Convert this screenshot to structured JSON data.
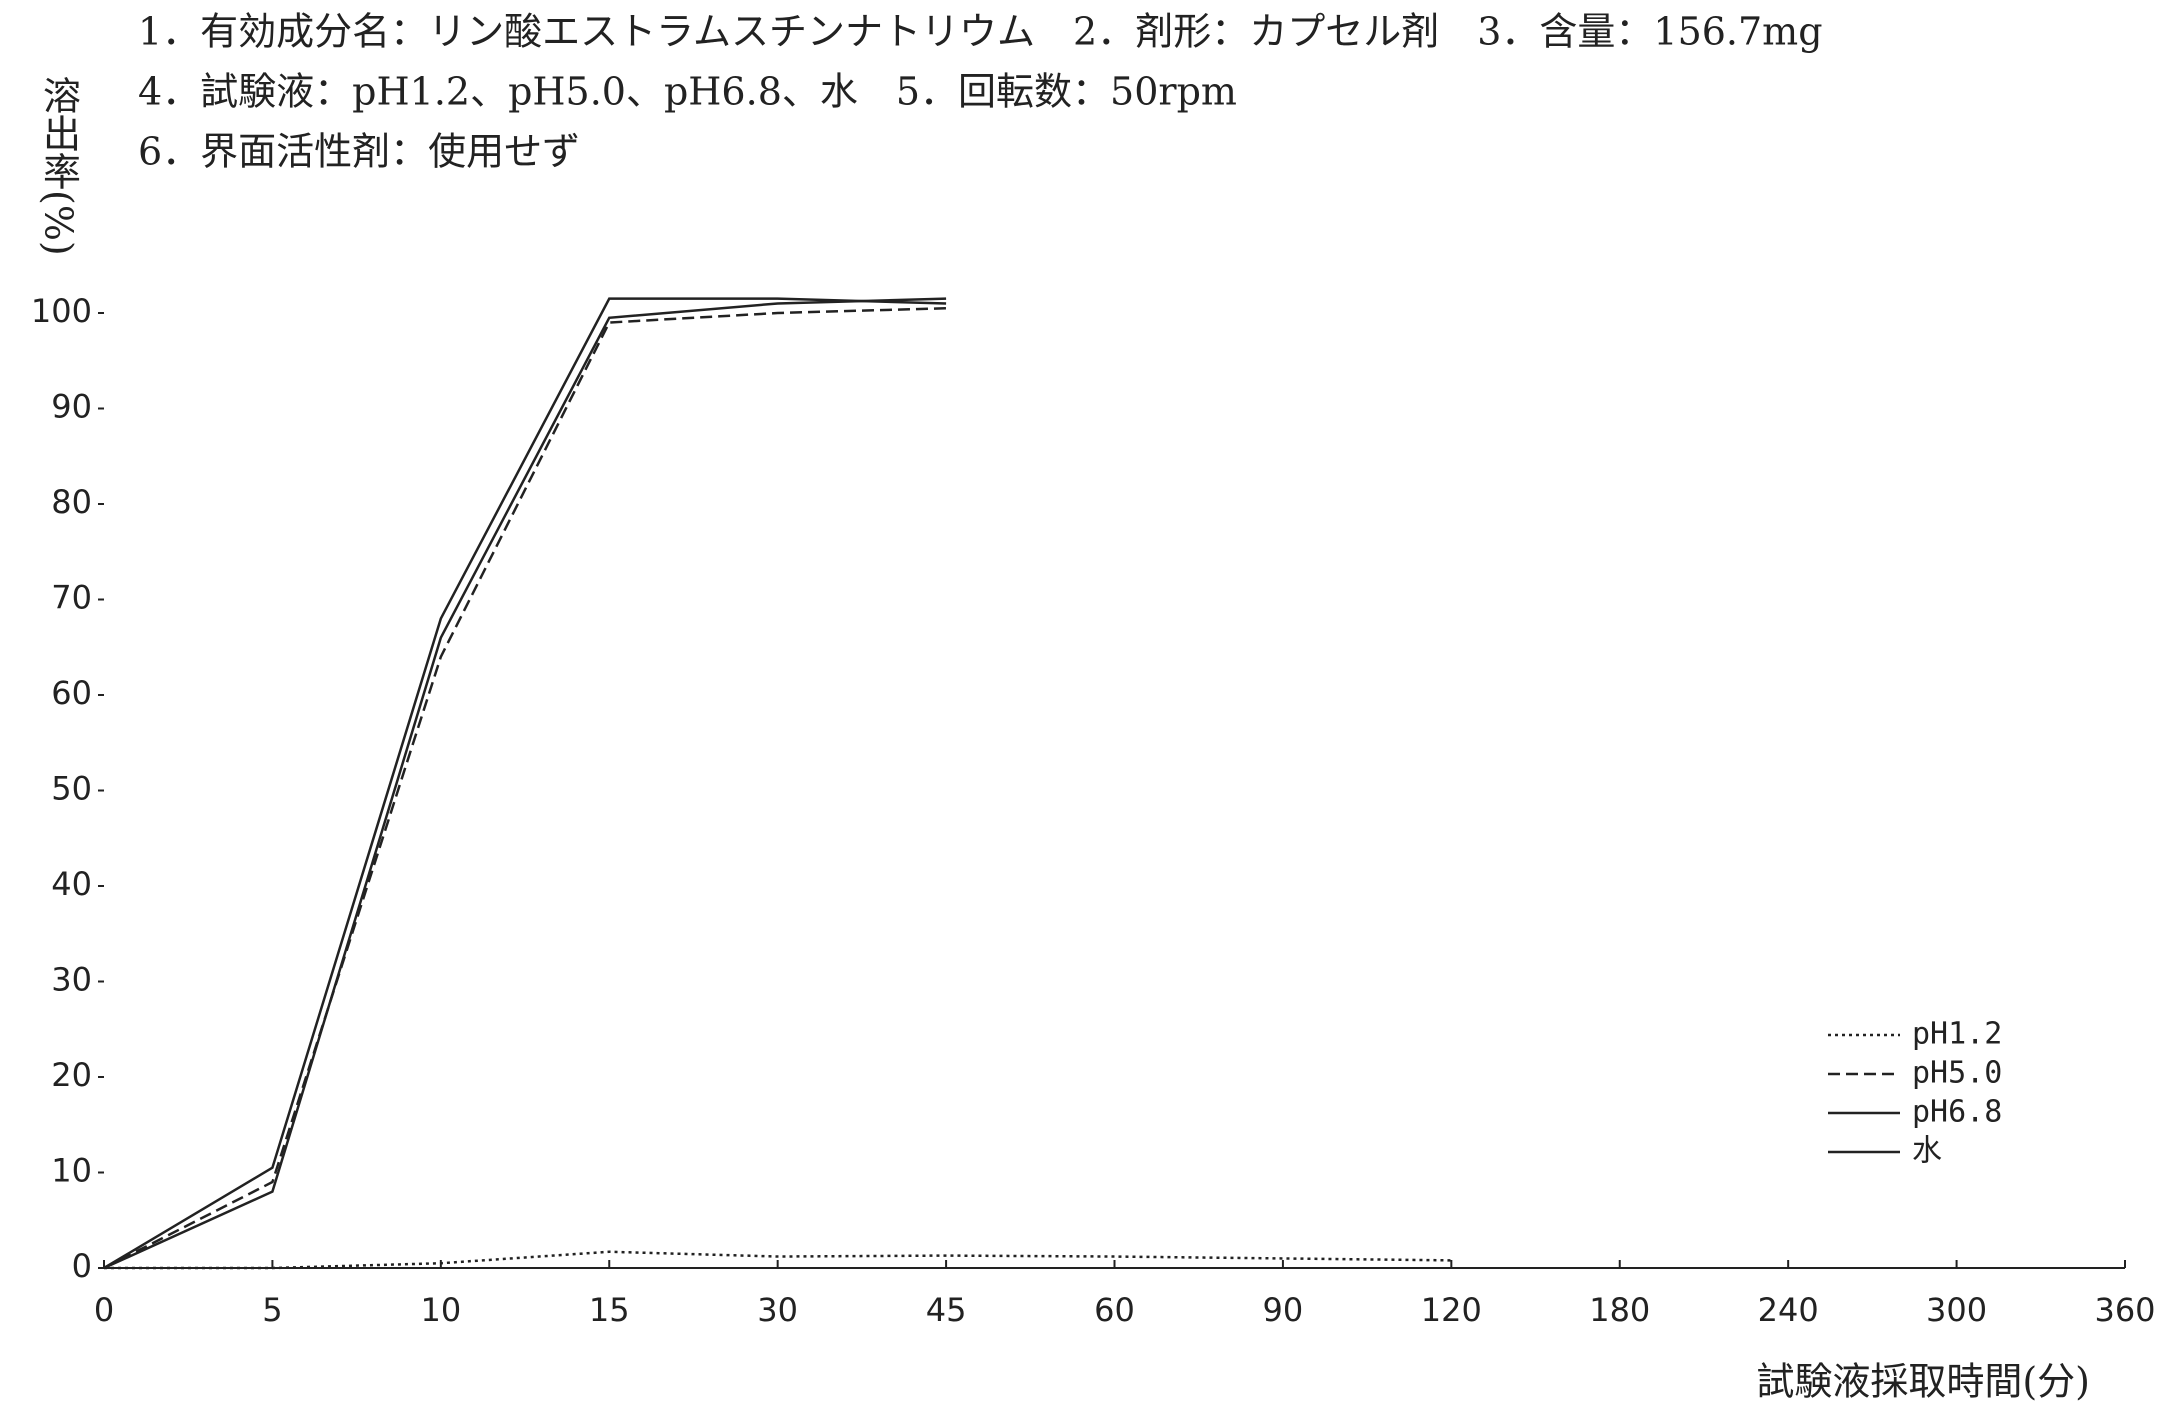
{
  "chart_data": {
    "type": "line",
    "notes": [
      "1．有効成分名：リン酸エストラムスチンナトリウム　2．剤形：カプセル剤　3．含量：156.7mg",
      "4．試験液：pH1.2、pH5.0、pH6.8、水　5．回転数：50rpm",
      "6．界面活性剤：使用せず"
    ],
    "y_label": "溶出率(%)",
    "x_label": "試験液採取時間(分)",
    "categories": [
      "0",
      "5",
      "10",
      "15",
      "30",
      "45",
      "60",
      "90",
      "120",
      "180",
      "240",
      "300",
      "360"
    ],
    "series": [
      {
        "name": "pH1.2",
        "color": "#222222",
        "dash": "3,4",
        "values": [
          0,
          0,
          0.5,
          1.7,
          1.2,
          1.3,
          1.2,
          1.0,
          0.8,
          null,
          null,
          null,
          null
        ]
      },
      {
        "name": "pH5.0",
        "color": "#222222",
        "dash": "12,6",
        "values": [
          0,
          9,
          64,
          99,
          100,
          100.5,
          null,
          null,
          null,
          null,
          null,
          null,
          null
        ]
      },
      {
        "name": "pH6.8",
        "color": "#222222",
        "dash": "none",
        "values": [
          0,
          8,
          66,
          99.5,
          101,
          101.5,
          null,
          null,
          null,
          null,
          null,
          null,
          null
        ]
      },
      {
        "name": "水",
        "color": "#222222",
        "dash": "none",
        "values": [
          0,
          10.5,
          68,
          101.5,
          101.5,
          101,
          null,
          null,
          null,
          null,
          null,
          null,
          null
        ]
      }
    ],
    "ylim": [
      0,
      100
    ],
    "yticks": [
      0,
      10,
      20,
      30,
      40,
      50,
      60,
      70,
      80,
      90,
      100
    ],
    "grid": false
  }
}
